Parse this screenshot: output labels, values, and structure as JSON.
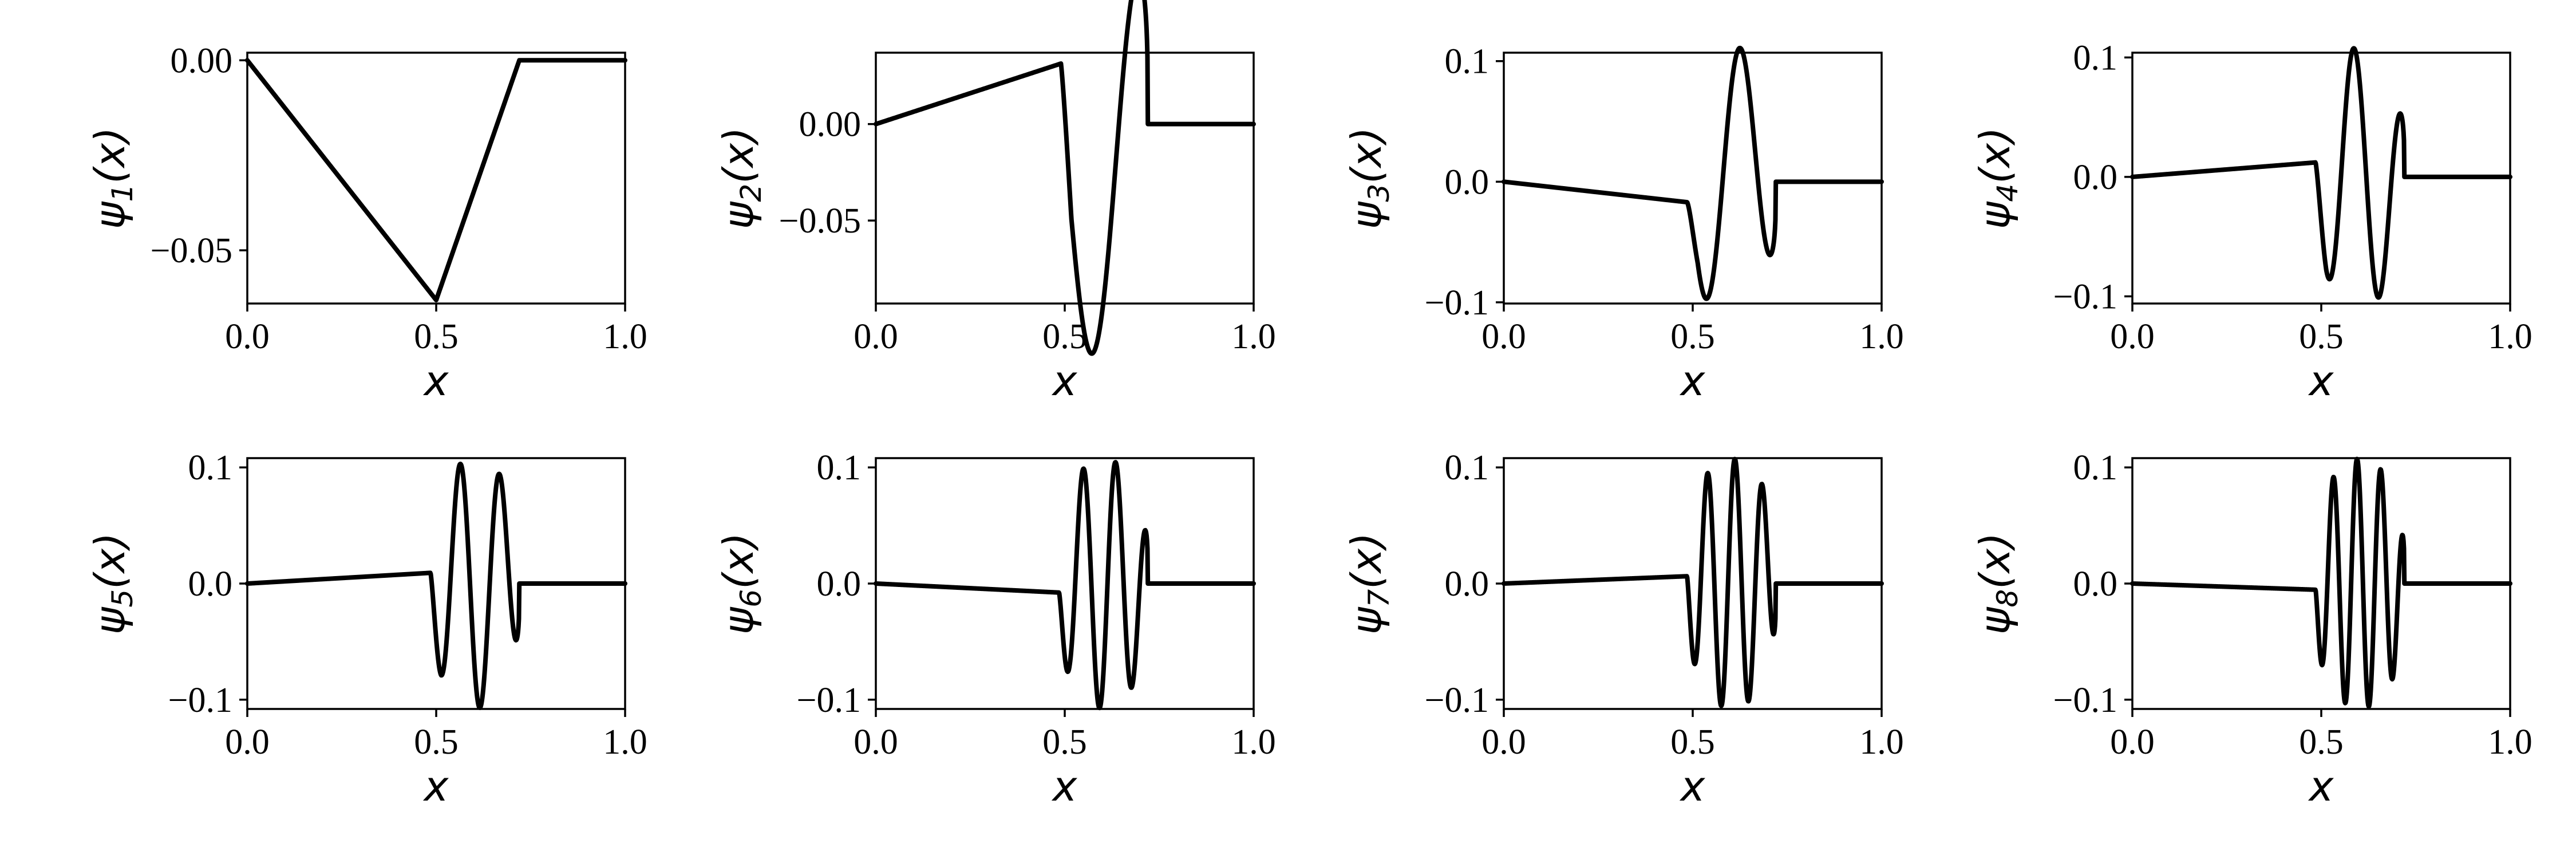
{
  "figure": {
    "panels": [
      {
        "ylabel_main": "ψ",
        "ylabel_sub": "1",
        "ylabel_tail": "(x)",
        "xlabel": "x"
      },
      {
        "ylabel_main": "ψ",
        "ylabel_sub": "2",
        "ylabel_tail": "(x)",
        "xlabel": "x"
      },
      {
        "ylabel_main": "ψ",
        "ylabel_sub": "3",
        "ylabel_tail": "(x)",
        "xlabel": "x"
      },
      {
        "ylabel_main": "ψ",
        "ylabel_sub": "4",
        "ylabel_tail": "(x)",
        "xlabel": "x"
      },
      {
        "ylabel_main": "ψ",
        "ylabel_sub": "5",
        "ylabel_tail": "(x)",
        "xlabel": "x"
      },
      {
        "ylabel_main": "ψ",
        "ylabel_sub": "6",
        "ylabel_tail": "(x)",
        "xlabel": "x"
      },
      {
        "ylabel_main": "ψ",
        "ylabel_sub": "7",
        "ylabel_tail": "(x)",
        "xlabel": "x"
      },
      {
        "ylabel_main": "ψ",
        "ylabel_sub": "8",
        "ylabel_tail": "(x)",
        "xlabel": "x"
      }
    ]
  },
  "chart_data": [
    {
      "type": "line",
      "xlabel": "x",
      "ylabel": "ψ1(x)",
      "xlim": [
        0,
        1
      ],
      "ylim": [
        -0.064,
        0.002
      ],
      "xticks": [
        0.0,
        0.5,
        1.0
      ],
      "xtick_labels": [
        "0.0",
        "0.5",
        "1.0"
      ],
      "yticks": [
        0.0,
        -0.05
      ],
      "ytick_labels": [
        "0.00",
        "−0.05"
      ],
      "grid": false,
      "series": [
        {
          "shape": {
            "kind": "tri",
            "s": -0.1262,
            "b": 0.0,
            "r": 0.72
          }
        }
      ]
    },
    {
      "type": "line",
      "xlabel": "x",
      "ylabel": "ψ2(x)",
      "xlim": [
        0,
        1
      ],
      "ylim": [
        -0.093,
        0.037
      ],
      "xticks": [
        0.0,
        0.5,
        1.0
      ],
      "xtick_labels": [
        "0.0",
        "0.5",
        "1.0"
      ],
      "yticks": [
        0.0,
        -0.05
      ],
      "ytick_labels": [
        "0.00",
        "−0.05"
      ],
      "grid": false,
      "series": [
        {
          "shape": {
            "kind": "osc",
            "s": 0.064,
            "b": 0.49,
            "r": 0.72,
            "A": 0.1235,
            "n": 1
          }
        }
      ]
    },
    {
      "type": "line",
      "xlabel": "x",
      "ylabel": "ψ3(x)",
      "xlim": [
        0,
        1
      ],
      "ylim": [
        -0.101,
        0.107
      ],
      "xticks": [
        0.0,
        0.5,
        1.0
      ],
      "xtick_labels": [
        "0.0",
        "0.5",
        "1.0"
      ],
      "yticks": [
        0.1,
        0.0,
        -0.1
      ],
      "ytick_labels": [
        "0.1",
        "0.0",
        "−0.1"
      ],
      "grid": false,
      "series": [
        {
          "shape": {
            "kind": "osc",
            "s": -0.035,
            "b": 0.485,
            "r": 0.72,
            "A": 0.1125,
            "n": 2
          }
        }
      ]
    },
    {
      "type": "line",
      "xlabel": "x",
      "ylabel": "ψ4(x)",
      "xlim": [
        0,
        1
      ],
      "ylim": [
        -0.106,
        0.104
      ],
      "xticks": [
        0.0,
        0.5,
        1.0
      ],
      "xtick_labels": [
        "0.0",
        "0.5",
        "1.0"
      ],
      "yticks": [
        0.1,
        0.0,
        -0.1
      ],
      "ytick_labels": [
        "0.1",
        "0.0",
        "−0.1"
      ],
      "grid": false,
      "series": [
        {
          "shape": {
            "kind": "osc",
            "s": 0.025,
            "b": 0.485,
            "r": 0.72,
            "A": 0.1085,
            "n": 3
          }
        }
      ]
    },
    {
      "type": "line",
      "xlabel": "x",
      "ylabel": "ψ5(x)",
      "xlim": [
        0,
        1
      ],
      "ylim": [
        -0.108,
        0.108
      ],
      "xticks": [
        0.0,
        0.5,
        1.0
      ],
      "xtick_labels": [
        "0.0",
        "0.5",
        "1.0"
      ],
      "yticks": [
        0.1,
        0.0,
        -0.1
      ],
      "ytick_labels": [
        "0.1",
        "0.0",
        "−0.1"
      ],
      "grid": false,
      "series": [
        {
          "shape": {
            "kind": "osc",
            "s": 0.019,
            "b": 0.485,
            "r": 0.72,
            "A": 0.1075,
            "n": 4
          }
        }
      ]
    },
    {
      "type": "line",
      "xlabel": "x",
      "ylabel": "ψ6(x)",
      "xlim": [
        0,
        1
      ],
      "ylim": [
        -0.108,
        0.108
      ],
      "xticks": [
        0.0,
        0.5,
        1.0
      ],
      "xtick_labels": [
        "0.0",
        "0.5",
        "1.0"
      ],
      "yticks": [
        0.1,
        0.0,
        -0.1
      ],
      "ytick_labels": [
        "0.1",
        "0.0",
        "−0.1"
      ],
      "grid": false,
      "series": [
        {
          "shape": {
            "kind": "osc",
            "s": -0.016,
            "b": 0.485,
            "r": 0.72,
            "A": 0.1075,
            "n": 5
          }
        }
      ]
    },
    {
      "type": "line",
      "xlabel": "x",
      "ylabel": "ψ7(x)",
      "xlim": [
        0,
        1
      ],
      "ylim": [
        -0.108,
        0.108
      ],
      "xticks": [
        0.0,
        0.5,
        1.0
      ],
      "xtick_labels": [
        "0.0",
        "0.5",
        "1.0"
      ],
      "yticks": [
        0.1,
        0.0,
        -0.1
      ],
      "ytick_labels": [
        "0.1",
        "0.0",
        "−0.1"
      ],
      "grid": false,
      "series": [
        {
          "shape": {
            "kind": "osc",
            "s": 0.013,
            "b": 0.485,
            "r": 0.72,
            "A": 0.1075,
            "n": 6
          }
        }
      ]
    },
    {
      "type": "line",
      "xlabel": "x",
      "ylabel": "ψ8(x)",
      "xlim": [
        0,
        1
      ],
      "ylim": [
        -0.108,
        0.108
      ],
      "xticks": [
        0.0,
        0.5,
        1.0
      ],
      "xtick_labels": [
        "0.0",
        "0.5",
        "1.0"
      ],
      "yticks": [
        0.1,
        0.0,
        -0.1
      ],
      "ytick_labels": [
        "0.1",
        "0.0",
        "−0.1"
      ],
      "grid": false,
      "series": [
        {
          "shape": {
            "kind": "osc",
            "s": -0.011,
            "b": 0.485,
            "r": 0.72,
            "A": 0.1075,
            "n": 7
          }
        }
      ]
    }
  ]
}
